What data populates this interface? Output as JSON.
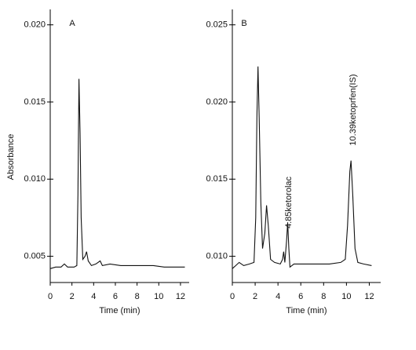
{
  "chart_data": [
    {
      "type": "line",
      "annotation": "A",
      "x_label": "Time (min)",
      "y_label": "Absorbance",
      "color": "#111111",
      "x": [
        0,
        0.5,
        1.0,
        1.3,
        1.6,
        2.2,
        2.45,
        2.55,
        2.65,
        2.75,
        2.85,
        3.0,
        3.2,
        3.35,
        3.5,
        3.8,
        4.2,
        4.6,
        4.8,
        5.5,
        6.5,
        7.5,
        8.5,
        9.5,
        10.5,
        11.5,
        12.4
      ],
      "values": [
        0.0042,
        0.0043,
        0.0043,
        0.0045,
        0.0043,
        0.0043,
        0.0044,
        0.009,
        0.0165,
        0.013,
        0.0075,
        0.0048,
        0.005,
        0.0053,
        0.0047,
        0.0044,
        0.0045,
        0.0047,
        0.0044,
        0.0045,
        0.0044,
        0.0044,
        0.0044,
        0.0044,
        0.0043,
        0.0043,
        0.0043
      ],
      "xlim": [
        0,
        12.8
      ],
      "xticks": [
        0,
        2,
        4,
        6,
        8,
        10,
        12
      ],
      "ylim": [
        0.0033,
        0.021
      ],
      "yticks": [
        0.005,
        {
          "value": 0.01,
          "label": "0.010"
        },
        0.015,
        {
          "value": 0.02,
          "label": "0.020"
        }
      ]
    },
    {
      "type": "line",
      "annotation": "B",
      "x_label": "Time (min)",
      "color": "#111111",
      "x": [
        0,
        0.3,
        0.6,
        1.0,
        1.5,
        1.9,
        2.05,
        2.15,
        2.25,
        2.35,
        2.5,
        2.65,
        2.85,
        3.0,
        3.15,
        3.35,
        3.7,
        4.2,
        4.4,
        4.5,
        4.6,
        4.75,
        4.85,
        4.95,
        5.05,
        5.4,
        6.5,
        7.5,
        8.5,
        9.5,
        9.9,
        10.1,
        10.3,
        10.4,
        10.55,
        10.75,
        11.0,
        11.5,
        12.2
      ],
      "values": [
        0.0092,
        0.0094,
        0.0096,
        0.0094,
        0.0095,
        0.0096,
        0.0125,
        0.019,
        0.0223,
        0.019,
        0.0135,
        0.0105,
        0.0115,
        0.0133,
        0.012,
        0.0098,
        0.0096,
        0.0095,
        0.0098,
        0.0103,
        0.0096,
        0.011,
        0.0122,
        0.0105,
        0.0093,
        0.0095,
        0.0095,
        0.0095,
        0.0095,
        0.0096,
        0.0098,
        0.012,
        0.0155,
        0.0162,
        0.014,
        0.0105,
        0.0096,
        0.0095,
        0.0094
      ],
      "xlim": [
        0,
        13
      ],
      "xticks": [
        0,
        2,
        4,
        6,
        8,
        10,
        12
      ],
      "ylim": [
        0.0083,
        0.026
      ],
      "yticks": [
        {
          "value": 0.01,
          "label": "0.010"
        },
        0.015,
        {
          "value": 0.02,
          "label": "0.020"
        },
        0.025
      ],
      "peak_labels": [
        "4.85ketorolac",
        "10.39ketoprfen(IS)"
      ]
    }
  ]
}
